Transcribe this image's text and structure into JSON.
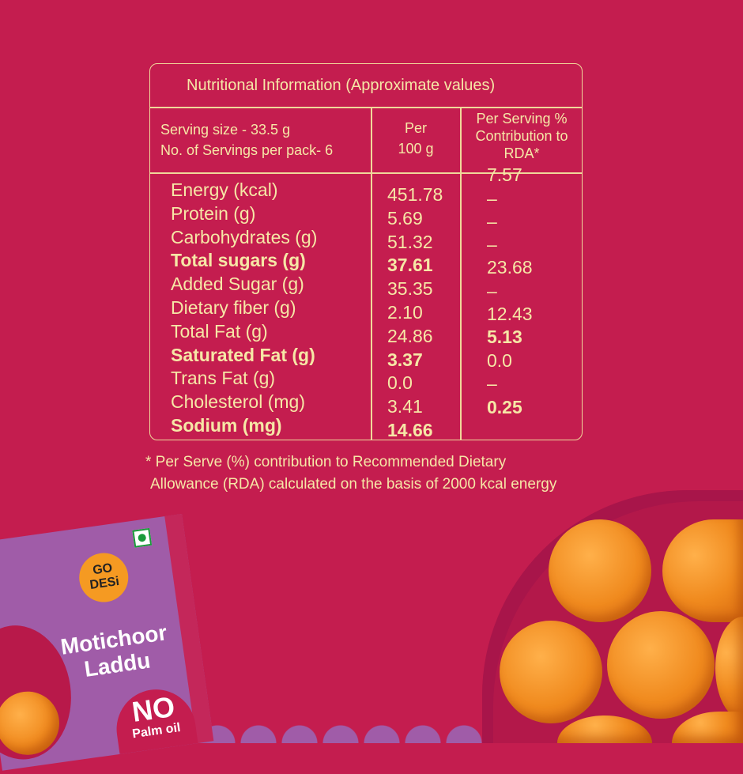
{
  "table": {
    "title": "Nutritional Information (Approximate values)",
    "serving_size": "Serving size - 33.5 g",
    "servings_per_pack": "No. of Servings per pack- 6",
    "col2_header": [
      "Per",
      "100 g"
    ],
    "col3_header": [
      "Per Serving %",
      "Contribution to",
      "RDA*"
    ],
    "rows": [
      {
        "name": "Energy (kcal)",
        "per100": "451.78",
        "bold": false
      },
      {
        "name": "Protein (g)",
        "per100": "5.69",
        "bold": false
      },
      {
        "name": "Carbohydrates (g)",
        "per100": "51.32",
        "bold": false
      },
      {
        "name": "Total sugars (g)",
        "per100": "37.61",
        "bold": true
      },
      {
        "name": "Added Sugar (g)",
        "per100": "35.35",
        "bold": false
      },
      {
        "name": "Dietary fiber (g)",
        "per100": "2.10",
        "bold": false
      },
      {
        "name": "Total Fat (g)",
        "per100": "24.86",
        "bold": false
      },
      {
        "name": "Saturated Fat (g)",
        "per100": "3.37",
        "bold": true
      },
      {
        "name": "Trans Fat (g)",
        "per100": "0.0",
        "bold": false
      },
      {
        "name": "Cholesterol (mg)",
        "per100": "3.41",
        "bold": false
      },
      {
        "name": "Sodium (mg)",
        "per100": "14.66",
        "bold": true
      }
    ],
    "rda": [
      {
        "v": "7.57",
        "bold": false
      },
      {
        "v": "–",
        "bold": false
      },
      {
        "v": "–",
        "bold": false
      },
      {
        "v": "–",
        "bold": false
      },
      {
        "v": "23.68",
        "bold": false
      },
      {
        "v": "–",
        "bold": false
      },
      {
        "v": "12.43",
        "bold": false
      },
      {
        "v": "5.13",
        "bold": true
      },
      {
        "v": "0.0",
        "bold": false
      },
      {
        "v": "–",
        "bold": false
      },
      {
        "v": "0.25",
        "bold": true
      }
    ]
  },
  "footnote": [
    "* Per Serve (%) contribution to Recommended Dietary",
    "Allowance (RDA) calculated on the basis of 2000 kcal energy"
  ],
  "pack": {
    "brand": [
      "GO",
      "DESi"
    ],
    "product": [
      "Motichoor",
      "Laddu"
    ],
    "badge": [
      "NO",
      "Palm oil"
    ]
  },
  "colors": {
    "background": "#c41d4f",
    "text": "#f6e7a6",
    "pack": "#a05ca8",
    "laddu": "#f08a1e"
  }
}
